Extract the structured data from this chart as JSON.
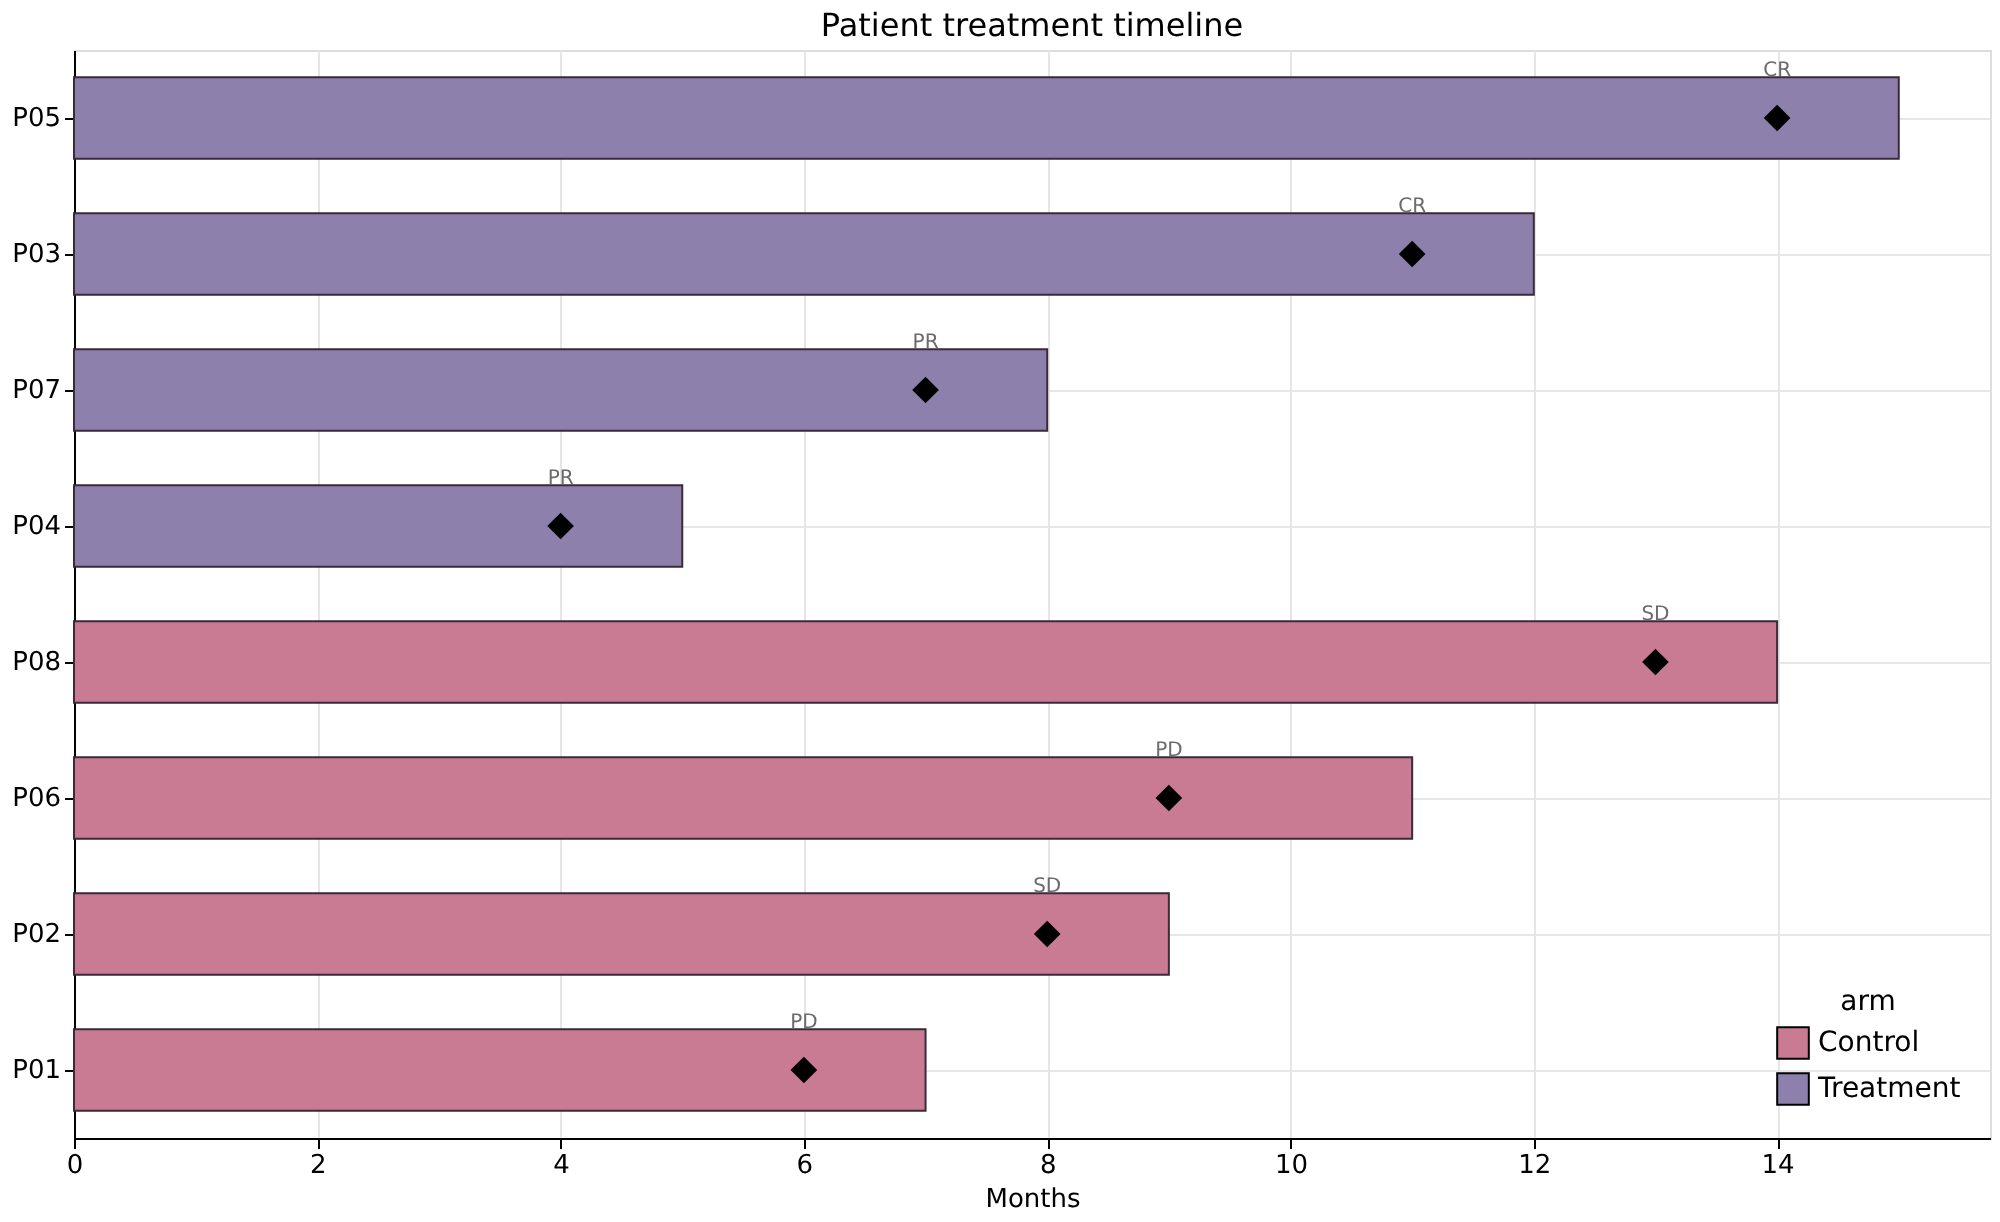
{
  "chart_data": {
    "type": "bar",
    "orientation": "horizontal",
    "title": "Patient treatment timeline",
    "xlabel": "Months",
    "categories": [
      "P05",
      "P03",
      "P07",
      "P04",
      "P08",
      "P06",
      "P02",
      "P01"
    ],
    "series": [
      {
        "name": "Control",
        "color": "#c97b94",
        "values": [
          null,
          null,
          null,
          null,
          14,
          11,
          9,
          7
        ]
      },
      {
        "name": "Treatment",
        "color": "#8e80ac",
        "values": [
          15,
          12,
          8,
          5,
          null,
          null,
          null,
          null
        ]
      },
      {
        "type": "scatter",
        "color": "#000000",
        "marker": "diamond",
        "values": [
          14,
          11,
          7,
          4,
          13,
          9,
          8,
          6
        ],
        "value_labels": [
          "CR",
          "CR",
          "PR",
          "PR",
          "SD",
          "PD",
          "SD",
          "PD"
        ]
      }
    ],
    "xlim": [
      0,
      15.75
    ],
    "xticks": [
      0,
      2,
      4,
      6,
      8,
      10,
      12,
      14
    ],
    "grid": true,
    "legend": "bottom right",
    "legend_title": "arm"
  }
}
